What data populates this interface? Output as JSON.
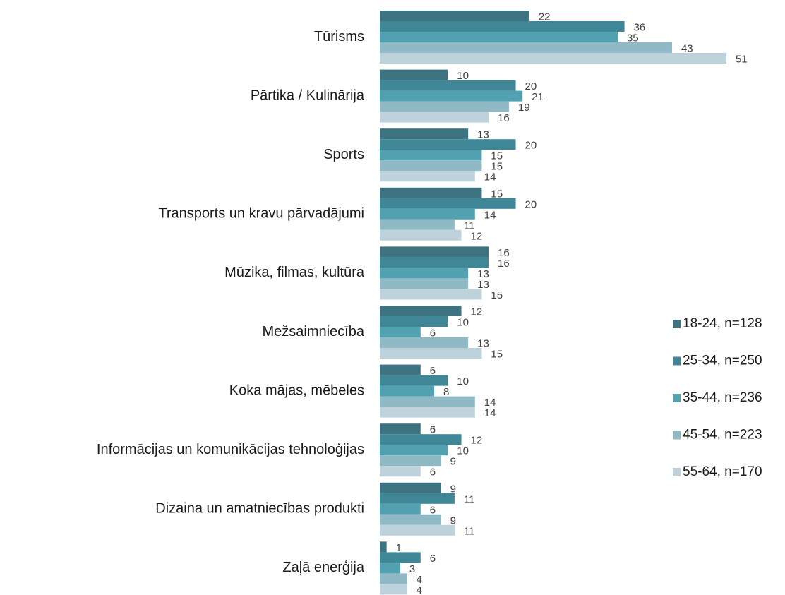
{
  "chart_data": {
    "type": "hbar",
    "categories": [
      "Tūrisms",
      "Pārtika / Kulinārija",
      "Sports",
      "Transports un kravu pārvadājumi",
      "Mūzika, filmas, kultūra",
      "Mežsaimniecība",
      "Koka mājas, mēbeles",
      "Informācijas un komunikācijas tehnoloģijas",
      "Dizaina un amatniecības produkti",
      "Zaļā enerģija"
    ],
    "series": [
      {
        "name": "18-24, n=128",
        "color": "#3d7280",
        "values": [
          22,
          10,
          13,
          15,
          16,
          12,
          6,
          6,
          9,
          1
        ]
      },
      {
        "name": "25-34, n=250",
        "color": "#3f8696",
        "values": [
          36,
          20,
          20,
          20,
          16,
          10,
          10,
          12,
          11,
          6
        ]
      },
      {
        "name": "35-44, n=236",
        "color": "#51a1b1",
        "values": [
          35,
          21,
          15,
          14,
          13,
          6,
          8,
          10,
          6,
          3
        ]
      },
      {
        "name": "45-54, n=223",
        "color": "#90b9c6",
        "values": [
          43,
          19,
          15,
          11,
          13,
          13,
          14,
          9,
          9,
          4
        ]
      },
      {
        "name": "55-64, n=170",
        "color": "#bdd2da",
        "values": [
          51,
          16,
          14,
          12,
          15,
          15,
          14,
          6,
          11,
          4
        ]
      }
    ],
    "xlim": [
      0,
      51
    ]
  }
}
